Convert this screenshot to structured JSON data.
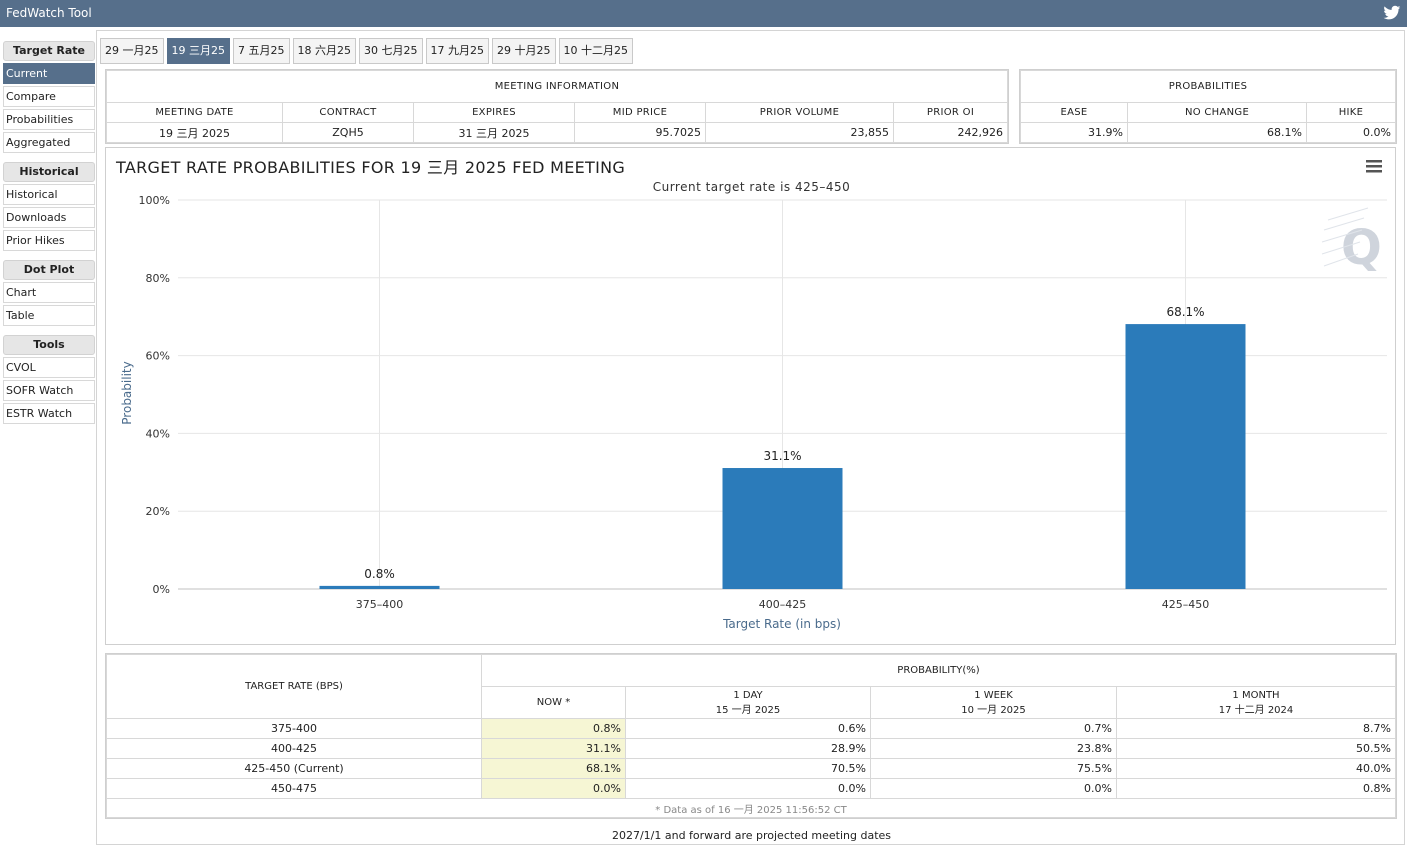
{
  "app": {
    "title": "FedWatch Tool",
    "twitter_icon": "twitter-icon"
  },
  "sidebar": {
    "sections": [
      {
        "title": "Target Rate",
        "items": [
          "Current",
          "Compare",
          "Probabilities",
          "Aggregated"
        ]
      },
      {
        "title": "Historical",
        "items": [
          "Historical",
          "Downloads",
          "Prior Hikes"
        ]
      },
      {
        "title": "Dot Plot",
        "items": [
          "Chart",
          "Table"
        ]
      },
      {
        "title": "Tools",
        "items": [
          "CVOL",
          "SOFR Watch",
          "ESTR Watch"
        ]
      }
    ],
    "active_item": "Current"
  },
  "tabs": [
    "29 一月25",
    "19 三月25",
    "7 五月25",
    "18 六月25",
    "30 七月25",
    "17 九月25",
    "29 十月25",
    "10 十二月25"
  ],
  "active_tab": "19 三月25",
  "meeting_info": {
    "title": "MEETING INFORMATION",
    "headers": [
      "MEETING DATE",
      "CONTRACT",
      "EXPIRES",
      "MID PRICE",
      "PRIOR VOLUME",
      "PRIOR OI"
    ],
    "values": [
      "19 三月 2025",
      "ZQH5",
      "31 三月 2025",
      "95.7025",
      "23,855",
      "242,926"
    ]
  },
  "probabilities": {
    "title": "PROBABILITIES",
    "headers": [
      "EASE",
      "NO CHANGE",
      "HIKE"
    ],
    "values": [
      "31.9%",
      "68.1%",
      "0.0%"
    ]
  },
  "chart_data": {
    "type": "bar",
    "title": "TARGET RATE PROBABILITIES FOR 19 三月 2025 FED MEETING",
    "subtitle": "Current target rate is 425–450",
    "xlabel": "Target Rate (in bps)",
    "ylabel": "Probability",
    "categories": [
      "375–400",
      "400–425",
      "425–450"
    ],
    "values": [
      0.8,
      31.1,
      68.1
    ],
    "data_labels": [
      "0.8%",
      "31.1%",
      "68.1%"
    ],
    "ylim": [
      0,
      100
    ],
    "yticks": [
      "0%",
      "20%",
      "40%",
      "60%",
      "80%",
      "100%"
    ],
    "grid": true,
    "bar_color": "#2b7bba",
    "menu_icon": "hamburger-menu-icon"
  },
  "rate_table": {
    "col_rate": "TARGET RATE (BPS)",
    "col_prob": "PROBABILITY(%)",
    "now_label": "NOW *",
    "periods": [
      {
        "label": "1 DAY",
        "date": "15 一月 2025"
      },
      {
        "label": "1 WEEK",
        "date": "10 一月 2025"
      },
      {
        "label": "1 MONTH",
        "date": "17 十二月 2024"
      }
    ],
    "rows": [
      {
        "rate": "375-400",
        "now": "0.8%",
        "day": "0.6%",
        "week": "0.7%",
        "month": "8.7%"
      },
      {
        "rate": "400-425",
        "now": "31.1%",
        "day": "28.9%",
        "week": "23.8%",
        "month": "50.5%"
      },
      {
        "rate": "425-450 (Current)",
        "now": "68.1%",
        "day": "70.5%",
        "week": "75.5%",
        "month": "40.0%"
      },
      {
        "rate": "450-475",
        "now": "0.0%",
        "day": "0.0%",
        "week": "0.0%",
        "month": "0.8%"
      }
    ],
    "asof": "* Data as of 16 一月 2025 11:56:52 CT"
  },
  "footnote": "2027/1/1 and forward are projected meeting dates"
}
